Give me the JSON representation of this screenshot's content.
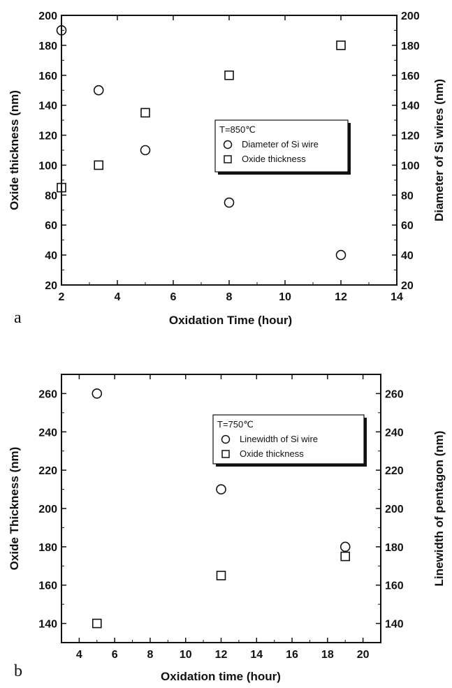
{
  "chart_data": [
    {
      "type": "scatter",
      "panel_label": "a",
      "xlabel": "Oxidation Time (hour)",
      "ylabel": "Oxide thickness (nm)",
      "y2label": "Diameter of Si wires (nm)",
      "xlim": [
        2,
        14
      ],
      "ylim": [
        20,
        200
      ],
      "y2lim": [
        20,
        200
      ],
      "xticks": [
        2,
        4,
        6,
        8,
        10,
        12,
        14
      ],
      "yticks": [
        20,
        40,
        60,
        80,
        100,
        120,
        140,
        160,
        180,
        200
      ],
      "y2ticks": [
        20,
        40,
        60,
        80,
        100,
        120,
        140,
        160,
        180,
        200
      ],
      "legend_title": "T=850℃",
      "legend_position": "center-right",
      "series": [
        {
          "name": "Diameter of Si wire",
          "marker": "circle",
          "x": [
            2,
            3.33,
            5,
            8,
            12
          ],
          "y": [
            190,
            150,
            110,
            75,
            40
          ]
        },
        {
          "name": "Oxide thickness",
          "marker": "square",
          "x": [
            2,
            3.33,
            5,
            8,
            12
          ],
          "y": [
            85,
            100,
            135,
            160,
            180
          ]
        }
      ]
    },
    {
      "type": "scatter",
      "panel_label": "b",
      "xlabel": "Oxidation time (hour)",
      "ylabel": "Oxide Thickness (nm)",
      "y2label": "Linewidth of pentagon (nm)",
      "xlim": [
        3,
        21
      ],
      "ylim": [
        130,
        270
      ],
      "y2lim": [
        130,
        270
      ],
      "xticks": [
        4,
        6,
        8,
        10,
        12,
        14,
        16,
        18,
        20
      ],
      "yticks": [
        140,
        160,
        180,
        200,
        220,
        240,
        260
      ],
      "y2ticks": [
        140,
        160,
        180,
        200,
        220,
        240,
        260
      ],
      "legend_title": "T=750℃",
      "legend_position": "top-right",
      "series": [
        {
          "name": "Linewidth of Si wire",
          "marker": "circle",
          "x": [
            5,
            12,
            19
          ],
          "y": [
            260,
            210,
            180
          ]
        },
        {
          "name": "Oxide thickness",
          "marker": "square",
          "x": [
            5,
            12,
            19
          ],
          "y": [
            140,
            165,
            175
          ]
        }
      ]
    }
  ]
}
